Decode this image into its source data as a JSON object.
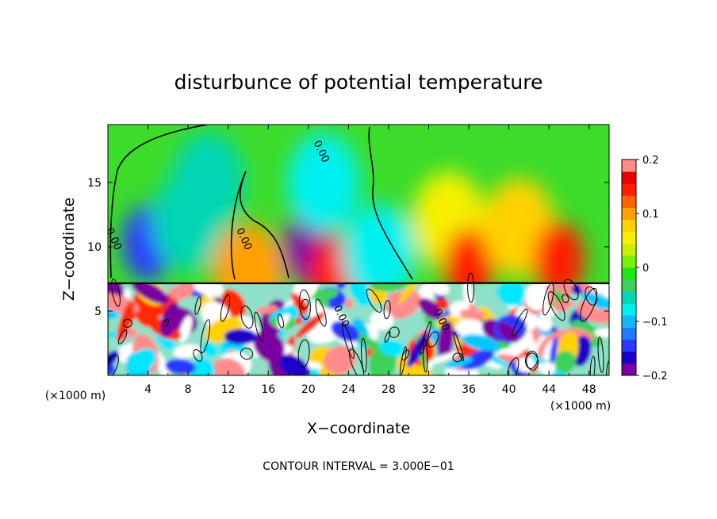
{
  "chart_data": {
    "type": "heatmap",
    "title": "disturbunce of potential temperature",
    "xlabel": "X−coordinate",
    "ylabel": "Z−coordinate",
    "x_unit_left": "(×1000 m)",
    "x_unit_right": "(×1000 m)",
    "footer": "CONTOUR INTERVAL = 3.000E−01",
    "xlim": [
      0,
      50
    ],
    "ylim": [
      0,
      19.5
    ],
    "x_ticks": [
      4,
      8,
      12,
      16,
      20,
      24,
      28,
      32,
      36,
      40,
      44,
      48
    ],
    "y_ticks": [
      5,
      10,
      15
    ],
    "colorbar": {
      "range": [
        -0.2,
        0.2
      ],
      "ticks": [
        0.2,
        0.1,
        0,
        -0.1,
        -0.2
      ],
      "tick_labels": [
        "0.2",
        "0.1",
        "0",
        "−0.1",
        "−0.2"
      ],
      "colors": [
        "#7a00a0",
        "#1a00c8",
        "#2b38ff",
        "#1e7dff",
        "#18b6ff",
        "#00f0f0",
        "#00d6b4",
        "#3cd25a",
        "#1ee619",
        "#78f000",
        "#c8f000",
        "#f5f000",
        "#ffd200",
        "#ffa000",
        "#ff6400",
        "#ff1e00",
        "#e60000",
        "#ff8c8c"
      ]
    },
    "contour_labels": [
      {
        "text": "0.00",
        "x": 0.3,
        "z": 10.5
      },
      {
        "text": "0.00",
        "x": 13.3,
        "z": 10.5
      },
      {
        "text": "0.00",
        "x": 21.0,
        "z": 17.3
      },
      {
        "text": "0.00",
        "x": 23.0,
        "z": 4.5
      },
      {
        "text": "0.00",
        "x": 33.0,
        "z": 4.2
      }
    ],
    "interface_z": 7.2,
    "field_upper": [
      {
        "x": 4,
        "z": 10.3,
        "value": -0.15
      },
      {
        "x": 8,
        "z": 12.0,
        "value": -0.06
      },
      {
        "x": 10,
        "z": 15.0,
        "value": -0.05
      },
      {
        "x": 14,
        "z": 8.0,
        "value": 0.09
      },
      {
        "x": 20,
        "z": 10.0,
        "value": -0.19
      },
      {
        "x": 21.5,
        "z": 15.0,
        "value": -0.08
      },
      {
        "x": 22.5,
        "z": 7.8,
        "value": 0.15
      },
      {
        "x": 27,
        "z": 9.5,
        "value": -0.07
      },
      {
        "x": 34,
        "z": 12.0,
        "value": 0.06
      },
      {
        "x": 36,
        "z": 8.5,
        "value": 0.15
      },
      {
        "x": 41,
        "z": 11.5,
        "value": 0.08
      },
      {
        "x": 45,
        "z": 9.0,
        "value": 0.15
      }
    ]
  }
}
